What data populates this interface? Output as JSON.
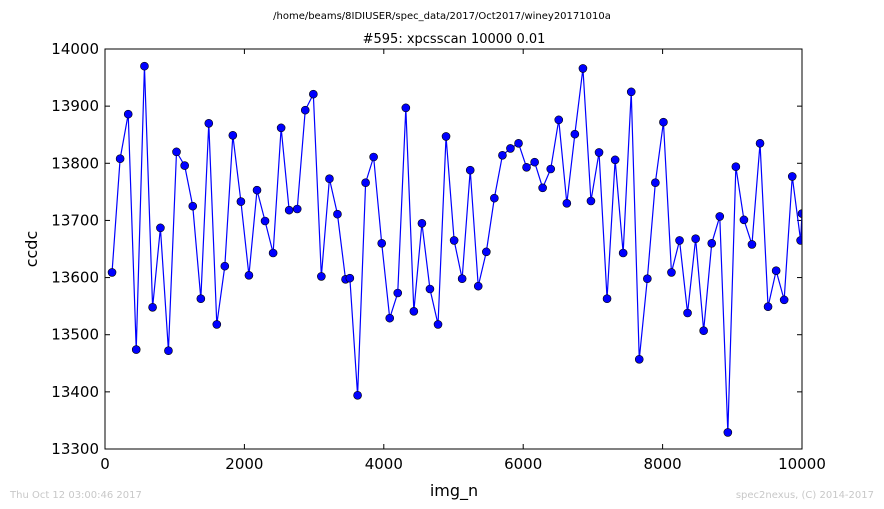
{
  "suptitle": "/home/beams/8IDIUSER/spec_data/2017/Oct2017/winey20171010a",
  "footer": {
    "timestamp": "Thu Oct 12 03:00:46 2017",
    "credit": "spec2nexus, (C) 2014-2017"
  },
  "chart_data": {
    "type": "line",
    "title": "#595: xpcsscan 10000 0.01",
    "xlabel": "img_n",
    "ylabel": "ccdc",
    "xlim": [
      0,
      10000
    ],
    "ylim": [
      13300,
      14000
    ],
    "xticks": [
      0,
      2000,
      4000,
      6000,
      8000,
      10000
    ],
    "yticks": [
      13300,
      13400,
      13500,
      13600,
      13700,
      13800,
      13900,
      14000
    ],
    "grid": false,
    "legend": "none",
    "series": [
      {
        "color": "#0000ff",
        "marker": "circle",
        "x": [
          101,
          217,
          333,
          448,
          566,
          683,
          795,
          910,
          1026,
          1143,
          1259,
          1375,
          1489,
          1604,
          1719,
          1834,
          1950,
          2065,
          2181,
          2296,
          2412,
          2527,
          2642,
          2758,
          2873,
          2989,
          3104,
          3220,
          3335,
          3451,
          3513,
          3624,
          3739,
          3854,
          3970,
          4085,
          4200,
          4316,
          4431,
          4547,
          4662,
          4778,
          4893,
          5009,
          5124,
          5240,
          5355,
          5471,
          5586,
          5702,
          5817,
          5933,
          6048,
          6164,
          6279,
          6395,
          6510,
          6626,
          6741,
          6857,
          6972,
          7088,
          7203,
          7319,
          7434,
          7550,
          7665,
          7781,
          7896,
          8012,
          8127,
          8243,
          8358,
          8474,
          8589,
          8705,
          8820,
          8936,
          9051,
          9167,
          9282,
          9398,
          9513,
          9629,
          9744,
          9860,
          9980
        ],
        "y": [
          13609,
          13808,
          13886,
          13474,
          13970,
          13548,
          13687,
          13472,
          13820,
          13796,
          13725,
          13563,
          13870,
          13518,
          13620,
          13849,
          13733,
          13604,
          13753,
          13699,
          13643,
          13862,
          13718,
          13720,
          13893,
          13921,
          13602,
          13773,
          13711,
          13597,
          13599,
          13394,
          13766,
          13811,
          13660,
          13529,
          13573,
          13897,
          13541,
          13695,
          13580,
          13518,
          13847,
          13665,
          13598,
          13788,
          13585,
          13645,
          13739,
          13814,
          13826,
          13835,
          13793,
          13802,
          13757,
          13790,
          13876,
          13730,
          13851,
          13966,
          13734,
          13819,
          13563,
          13806,
          13643,
          13925,
          13457,
          13598,
          13766,
          13872,
          13609,
          13665,
          13538,
          13668,
          13507,
          13660,
          13707,
          13329,
          13794,
          13701,
          13658,
          13835,
          13549,
          13612,
          13561,
          13777,
          13665
        ]
      },
      {
        "color": "#0000ff",
        "marker": "circle",
        "x": [
          9980,
          10000
        ],
        "y": [
          13665,
          13712
        ]
      }
    ]
  }
}
